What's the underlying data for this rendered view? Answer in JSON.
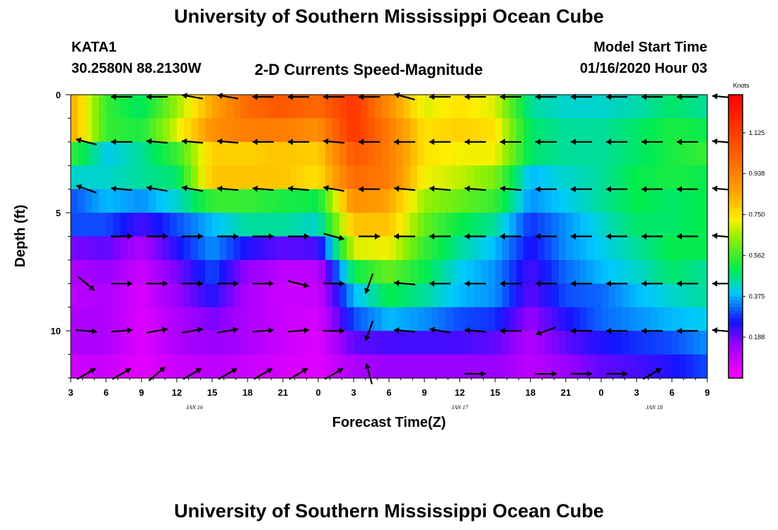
{
  "header": {
    "title": "University of Southern Mississippi Ocean Cube",
    "station": "KATA1",
    "location": "30.2580N 88.2130W",
    "plot_title": "2-D Currents Speed-Magnitude",
    "start_label": "Model Start Time",
    "start_time": "01/16/2020 Hour 03"
  },
  "footer": {
    "title": "University of Southern Mississippi Ocean Cube"
  },
  "chart_data": {
    "type": "heatmap",
    "title": "2-D Currents Speed-Magnitude",
    "xlabel": "Forecast Time(Z)",
    "ylabel": "Depth (ft)",
    "x_hours": [
      0,
      54
    ],
    "ylim": [
      0,
      12
    ],
    "x_ticks": [
      {
        "hour": 0,
        "label": "3"
      },
      {
        "hour": 3,
        "label": "6"
      },
      {
        "hour": 6,
        "label": "9"
      },
      {
        "hour": 9,
        "label": "12"
      },
      {
        "hour": 12,
        "label": "15"
      },
      {
        "hour": 15,
        "label": "18"
      },
      {
        "hour": 18,
        "label": "21"
      },
      {
        "hour": 21,
        "label": "0"
      },
      {
        "hour": 24,
        "label": "3"
      },
      {
        "hour": 27,
        "label": "6"
      },
      {
        "hour": 30,
        "label": "9"
      },
      {
        "hour": 33,
        "label": "12"
      },
      {
        "hour": 36,
        "label": "15"
      },
      {
        "hour": 39,
        "label": "18"
      },
      {
        "hour": 42,
        "label": "21"
      },
      {
        "hour": 45,
        "label": "0"
      },
      {
        "hour": 48,
        "label": "3"
      },
      {
        "hour": 51,
        "label": "6"
      },
      {
        "hour": 54,
        "label": "9"
      }
    ],
    "date_labels": [
      {
        "hour": 10.5,
        "label": "JAN 16"
      },
      {
        "hour": 33,
        "label": "JAN 17"
      },
      {
        "hour": 49.5,
        "label": "JAN 18"
      }
    ],
    "y_ticks": [
      {
        "depth": 0,
        "label": "0"
      },
      {
        "depth": 5,
        "label": "5"
      },
      {
        "depth": 10,
        "label": "10"
      }
    ],
    "colorbar": {
      "label": "Knots",
      "range": [
        0,
        1.3
      ],
      "ticks": [
        "0.188",
        "0.375",
        "0.562",
        "0.750",
        "0.938",
        "1.125"
      ],
      "tick_values": [
        0.188,
        0.375,
        0.562,
        0.75,
        0.938,
        1.125
      ]
    },
    "depths": [
      0,
      1,
      2,
      3,
      4,
      5,
      6,
      7,
      8,
      9,
      10,
      11
    ],
    "times": [
      0,
      3,
      6,
      9,
      12,
      15,
      18,
      21,
      24,
      27,
      30,
      33,
      36,
      39,
      42,
      45,
      48,
      51,
      54
    ],
    "speeds": [
      [
        0.85,
        0.55,
        0.48,
        0.65,
        0.85,
        1.0,
        1.05,
        1.0,
        1.15,
        0.9,
        0.7,
        0.75,
        0.7,
        0.45,
        0.42,
        0.42,
        0.44,
        0.48,
        0.45
      ],
      [
        0.85,
        0.55,
        0.52,
        0.7,
        0.9,
        0.95,
        0.95,
        0.9,
        1.15,
        0.95,
        0.75,
        0.78,
        0.75,
        0.48,
        0.45,
        0.45,
        0.48,
        0.52,
        0.5
      ],
      [
        0.55,
        0.4,
        0.45,
        0.55,
        0.78,
        0.78,
        0.8,
        0.78,
        1.05,
        0.95,
        0.75,
        0.72,
        0.72,
        0.48,
        0.45,
        0.45,
        0.48,
        0.52,
        0.55
      ],
      [
        0.42,
        0.42,
        0.45,
        0.48,
        0.8,
        0.8,
        0.8,
        0.75,
        1.0,
        0.95,
        0.72,
        0.68,
        0.62,
        0.38,
        0.42,
        0.45,
        0.5,
        0.52,
        0.5
      ],
      [
        0.3,
        0.38,
        0.35,
        0.42,
        0.55,
        0.55,
        0.52,
        0.5,
        0.9,
        0.85,
        0.65,
        0.6,
        0.55,
        0.35,
        0.4,
        0.45,
        0.5,
        0.48,
        0.5
      ],
      [
        0.3,
        0.3,
        0.22,
        0.3,
        0.38,
        0.45,
        0.45,
        0.42,
        0.8,
        0.8,
        0.6,
        0.5,
        0.45,
        0.28,
        0.35,
        0.42,
        0.48,
        0.48,
        0.5
      ],
      [
        0.18,
        0.2,
        0.12,
        0.25,
        0.35,
        0.25,
        0.2,
        0.22,
        0.7,
        0.72,
        0.55,
        0.45,
        0.38,
        0.25,
        0.35,
        0.4,
        0.45,
        0.5,
        0.5
      ],
      [
        0.12,
        0.15,
        0.08,
        0.18,
        0.3,
        0.15,
        0.1,
        0.1,
        0.5,
        0.6,
        0.5,
        0.4,
        0.35,
        0.22,
        0.32,
        0.38,
        0.42,
        0.48,
        0.45
      ],
      [
        0.1,
        0.12,
        0.06,
        0.15,
        0.25,
        0.12,
        0.08,
        0.08,
        0.38,
        0.5,
        0.45,
        0.38,
        0.35,
        0.2,
        0.3,
        0.32,
        0.38,
        0.42,
        0.45
      ],
      [
        0.12,
        0.12,
        0.05,
        0.12,
        0.18,
        0.12,
        0.08,
        0.06,
        0.3,
        0.38,
        0.35,
        0.3,
        0.28,
        0.15,
        0.25,
        0.32,
        0.35,
        0.38,
        0.4
      ],
      [
        0.12,
        0.12,
        0.05,
        0.12,
        0.15,
        0.12,
        0.08,
        0.05,
        0.2,
        0.22,
        0.22,
        0.22,
        0.2,
        0.12,
        0.2,
        0.25,
        0.28,
        0.3,
        0.35
      ],
      [
        0.08,
        0.08,
        0.04,
        0.08,
        0.1,
        0.08,
        0.06,
        0.05,
        0.12,
        0.15,
        0.15,
        0.15,
        0.15,
        0.1,
        0.15,
        0.2,
        0.22,
        0.25,
        0.3
      ]
    ],
    "vectors_note": "Arrow directions in degrees (0 = east, 90 = north), rows by depth 0..12, columns every 3 h from 3Z",
    "vector_depths": [
      0,
      2,
      4,
      6,
      8,
      10,
      12
    ],
    "vector_dirs": [
      [
        180,
        180,
        180,
        170,
        170,
        180,
        180,
        180,
        180,
        165,
        180,
        180,
        180,
        180,
        180,
        180,
        180,
        180,
        175
      ],
      [
        165,
        180,
        175,
        175,
        175,
        180,
        180,
        175,
        180,
        180,
        180,
        180,
        180,
        180,
        180,
        180,
        180,
        180,
        175
      ],
      [
        160,
        175,
        170,
        170,
        175,
        175,
        175,
        170,
        180,
        175,
        175,
        175,
        175,
        180,
        180,
        180,
        180,
        180,
        175
      ],
      [
        0,
        0,
        0,
        0,
        0,
        0,
        0,
        -15,
        0,
        180,
        180,
        180,
        180,
        180,
        180,
        180,
        180,
        180,
        175
      ],
      [
        -40,
        0,
        0,
        0,
        0,
        0,
        -15,
        0,
        250,
        175,
        180,
        180,
        180,
        180,
        180,
        180,
        180,
        180,
        180
      ],
      [
        -5,
        5,
        10,
        10,
        10,
        5,
        5,
        0,
        250,
        175,
        170,
        175,
        180,
        200,
        180,
        180,
        180,
        180,
        175
      ],
      [
        30,
        30,
        40,
        30,
        30,
        30,
        30,
        30,
        105,
        0,
        0,
        0,
        0,
        0,
        0,
        0,
        30,
        60,
        0
      ]
    ],
    "vector_visible": [
      [
        0,
        1,
        1,
        1,
        1,
        1,
        1,
        1,
        1,
        1,
        1,
        1,
        1,
        1,
        1,
        1,
        1,
        1,
        1
      ],
      [
        1,
        1,
        1,
        1,
        1,
        1,
        1,
        1,
        1,
        1,
        1,
        1,
        1,
        1,
        1,
        1,
        1,
        1,
        1
      ],
      [
        1,
        1,
        1,
        1,
        1,
        1,
        1,
        1,
        1,
        1,
        1,
        1,
        1,
        1,
        1,
        1,
        1,
        1,
        1
      ],
      [
        0,
        1,
        1,
        1,
        1,
        1,
        1,
        1,
        1,
        1,
        1,
        1,
        1,
        1,
        1,
        1,
        1,
        1,
        1
      ],
      [
        1,
        1,
        1,
        1,
        1,
        1,
        1,
        1,
        1,
        1,
        1,
        1,
        1,
        1,
        1,
        1,
        1,
        1,
        1
      ],
      [
        1,
        1,
        1,
        1,
        1,
        1,
        1,
        1,
        1,
        1,
        1,
        1,
        1,
        1,
        1,
        1,
        1,
        1,
        1
      ],
      [
        1,
        1,
        1,
        1,
        1,
        1,
        1,
        1,
        1,
        0,
        0,
        1,
        0,
        1,
        1,
        1,
        1,
        0,
        0
      ]
    ]
  }
}
